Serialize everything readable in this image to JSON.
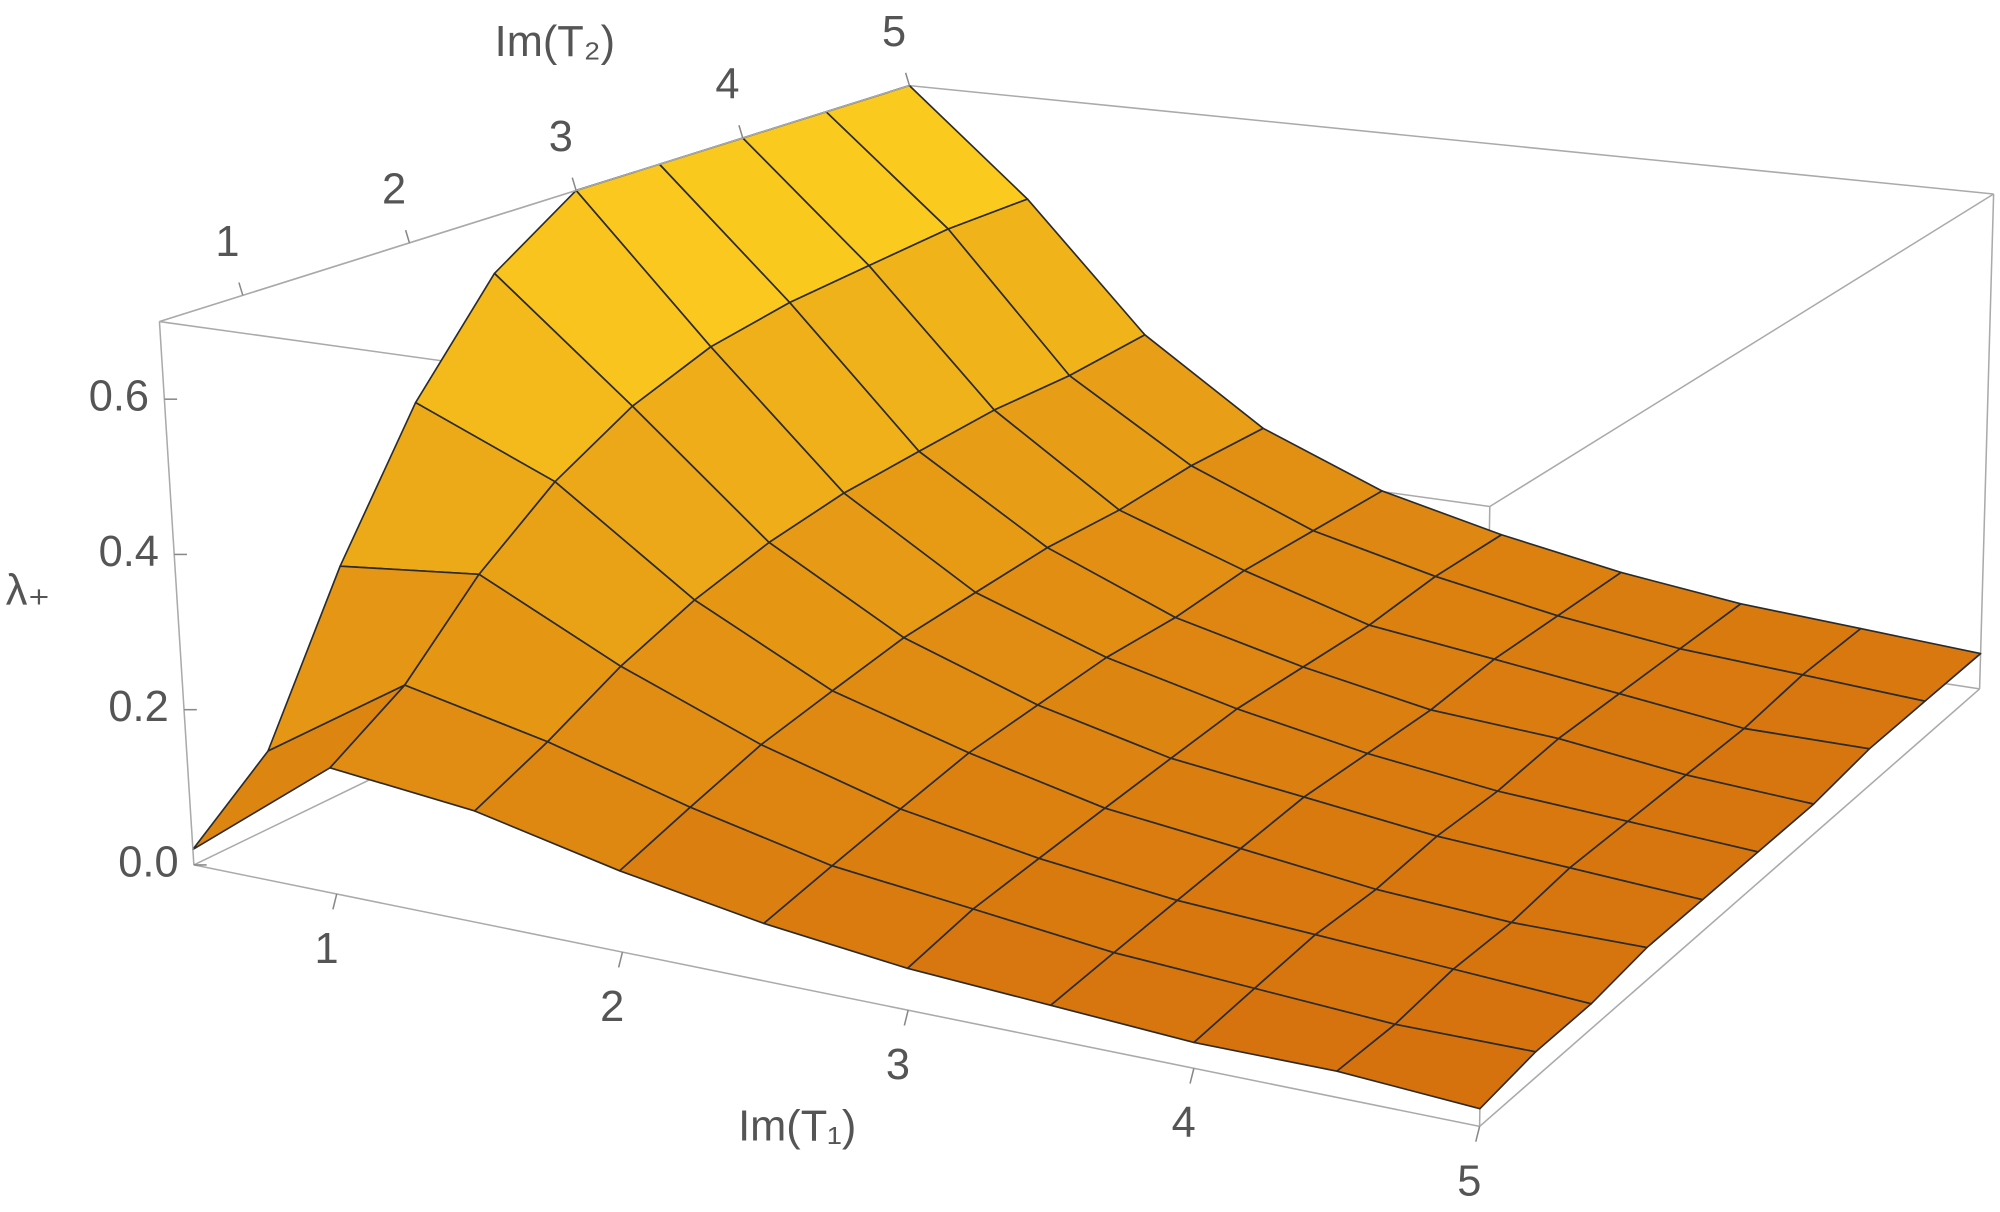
{
  "chart_data": {
    "type": "surface3d",
    "xlabel": "Im(T₁)",
    "ylabel": "Im(T₂)",
    "zlabel": "λ₊",
    "x": [
      0.5,
      1.0,
      1.5,
      2.0,
      2.5,
      3.0,
      3.5,
      4.0,
      4.5,
      5.0
    ],
    "y": [
      0.5,
      1.0,
      1.5,
      2.0,
      2.5,
      3.0,
      3.5,
      4.0,
      4.5,
      5.0
    ],
    "z": [
      [
        0.02,
        0.1,
        0.3,
        0.48,
        0.62,
        0.7,
        0.7,
        0.7,
        0.7,
        0.7
      ],
      [
        0.16,
        0.22,
        0.32,
        0.4,
        0.46,
        0.5,
        0.52,
        0.53,
        0.54,
        0.54
      ],
      [
        0.14,
        0.18,
        0.23,
        0.27,
        0.3,
        0.32,
        0.33,
        0.34,
        0.34,
        0.35
      ],
      [
        0.1,
        0.13,
        0.16,
        0.18,
        0.2,
        0.21,
        0.22,
        0.22,
        0.23,
        0.23
      ],
      [
        0.07,
        0.09,
        0.11,
        0.13,
        0.14,
        0.15,
        0.15,
        0.16,
        0.16,
        0.16
      ],
      [
        0.05,
        0.07,
        0.08,
        0.09,
        0.1,
        0.11,
        0.11,
        0.11,
        0.12,
        0.12
      ],
      [
        0.04,
        0.05,
        0.06,
        0.07,
        0.08,
        0.08,
        0.08,
        0.09,
        0.09,
        0.09
      ],
      [
        0.03,
        0.04,
        0.05,
        0.05,
        0.06,
        0.06,
        0.07,
        0.07,
        0.07,
        0.07
      ],
      [
        0.03,
        0.03,
        0.04,
        0.04,
        0.05,
        0.05,
        0.05,
        0.05,
        0.06,
        0.06
      ],
      [
        0.02,
        0.03,
        0.03,
        0.04,
        0.04,
        0.04,
        0.04,
        0.05,
        0.05,
        0.05
      ]
    ],
    "xlim": [
      0.5,
      5
    ],
    "ylim": [
      0.5,
      5
    ],
    "zlim": [
      0,
      0.7
    ],
    "xticks": [
      1,
      2,
      3,
      4,
      5
    ],
    "yticks": [
      1,
      2,
      3,
      4,
      5
    ],
    "zticks": [
      {
        "value": 0,
        "label": "0.0"
      },
      0.2,
      0.4,
      0.6
    ],
    "colors": {
      "low": "#d26a0c",
      "high": "#ffd420"
    }
  }
}
